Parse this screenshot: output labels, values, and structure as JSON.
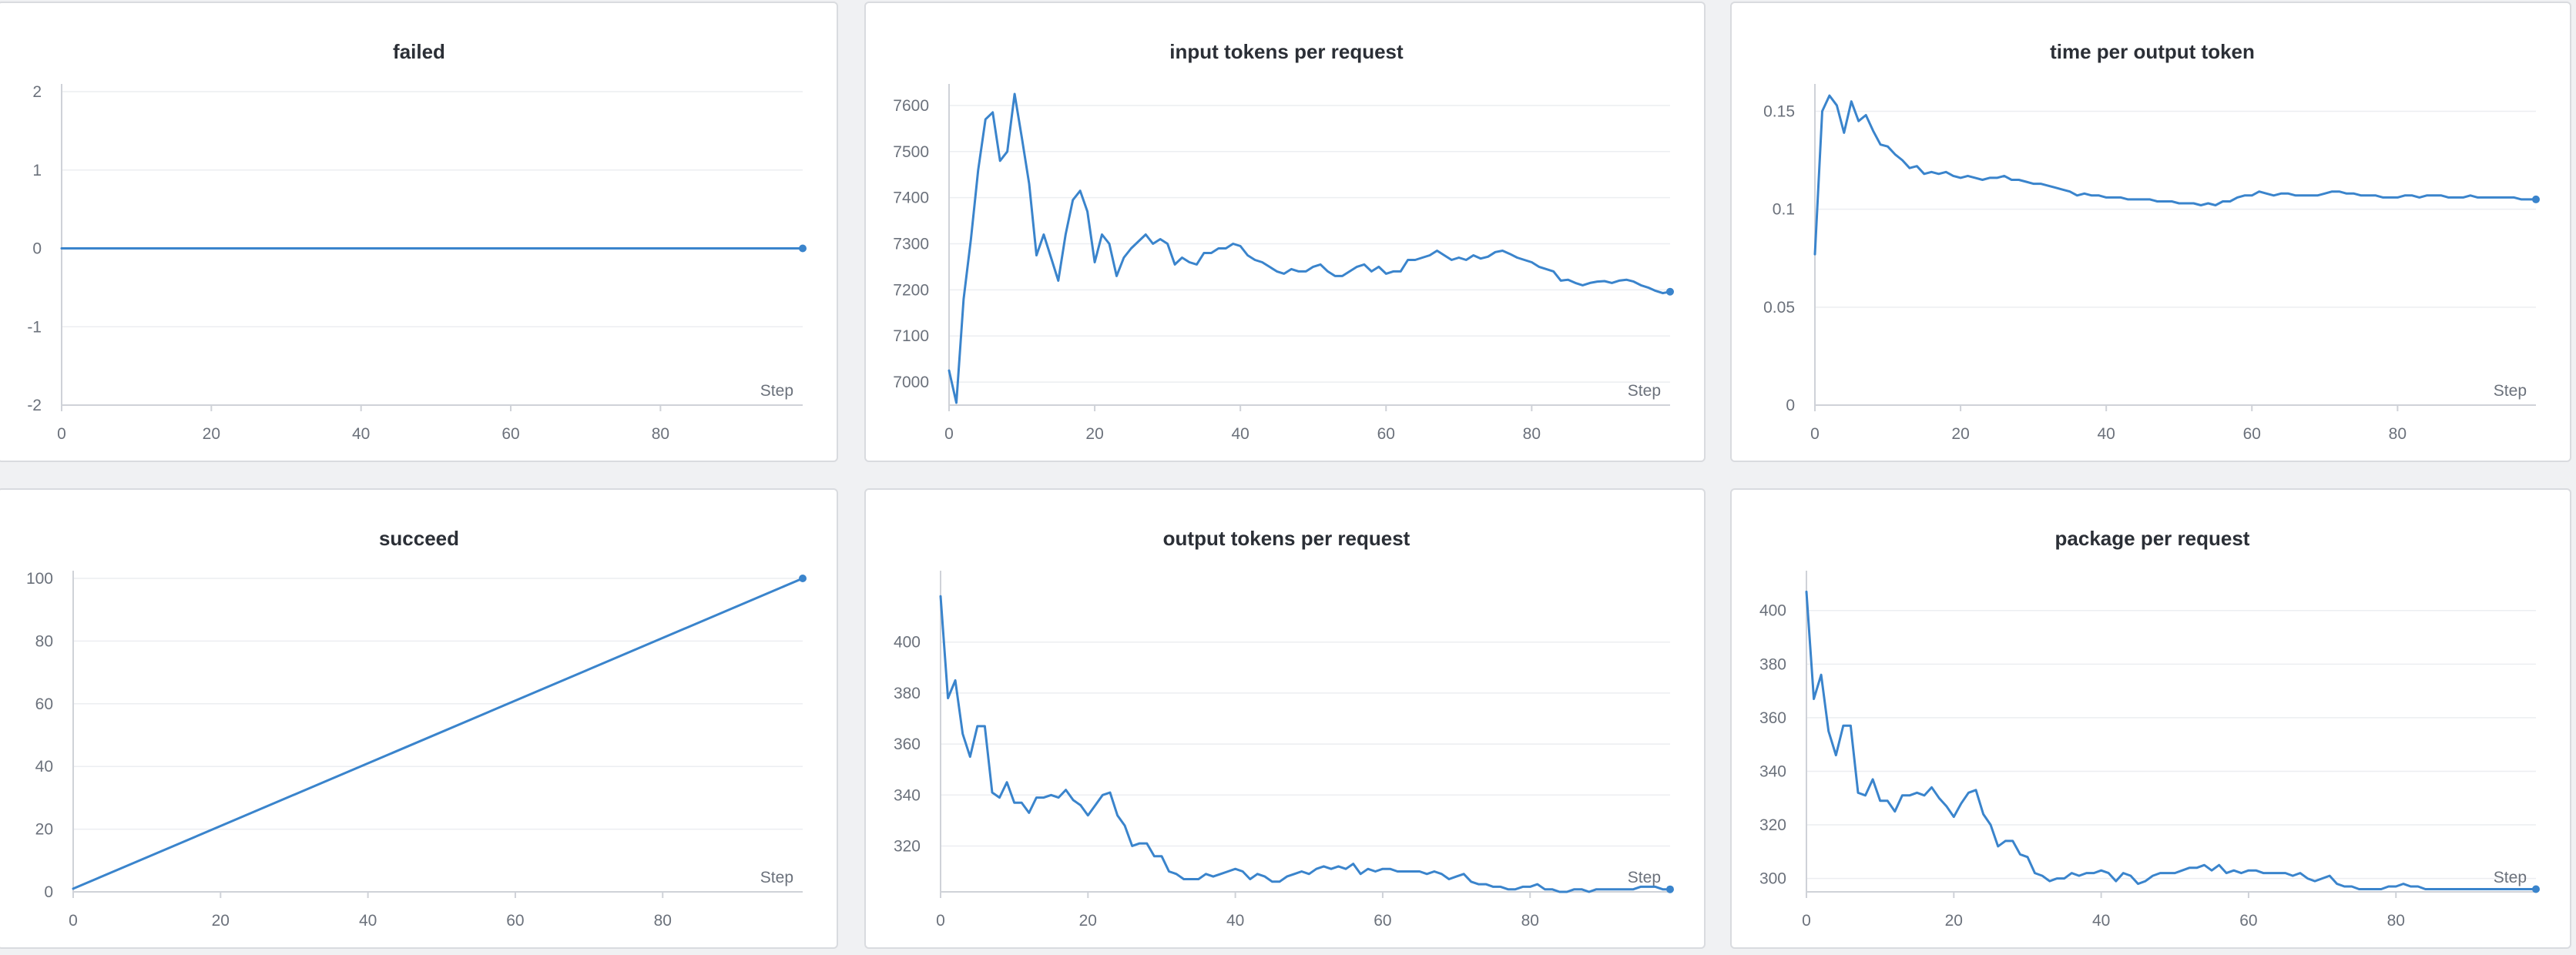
{
  "colors": {
    "series": "#3a84cc"
  },
  "chart_data": [
    {
      "id": "failed",
      "type": "line",
      "title": "failed",
      "xlabel": "Step",
      "xlim": [
        0,
        99
      ],
      "xticks": [
        0,
        20,
        40,
        60,
        80
      ],
      "ylim": [
        -2,
        2
      ],
      "yticks": [
        -2,
        -1,
        0,
        1,
        2
      ],
      "ytick_labels": [
        "-2",
        "-1",
        "0",
        "1",
        "2"
      ],
      "series": [
        {
          "x": [
            0,
            99
          ],
          "y": [
            0,
            0
          ]
        }
      ]
    },
    {
      "id": "input-tokens-per-request",
      "type": "line",
      "title": "input tokens per request",
      "xlabel": "Step",
      "xlim": [
        0,
        99
      ],
      "xticks": [
        0,
        20,
        40,
        60,
        80
      ],
      "ylim": [
        6950,
        7630
      ],
      "yticks": [
        7000,
        7100,
        7200,
        7300,
        7400,
        7500,
        7600
      ],
      "ytick_labels": [
        "7000",
        "7100",
        "7200",
        "7300",
        "7400",
        "7500",
        "7600"
      ],
      "series": [
        {
          "x": [
            0,
            1,
            2,
            3,
            4,
            5,
            6,
            7,
            8,
            9,
            10,
            11,
            12,
            13,
            14,
            15,
            16,
            17,
            18,
            19,
            20,
            21,
            22,
            23,
            24,
            25,
            26,
            27,
            28,
            29,
            30,
            31,
            32,
            33,
            34,
            35,
            36,
            37,
            38,
            39,
            40,
            41,
            42,
            43,
            44,
            45,
            46,
            47,
            48,
            49,
            50,
            51,
            52,
            53,
            54,
            55,
            56,
            57,
            58,
            59,
            60,
            61,
            62,
            63,
            64,
            65,
            66,
            67,
            68,
            69,
            70,
            71,
            72,
            73,
            74,
            75,
            76,
            77,
            78,
            79,
            80,
            81,
            82,
            83,
            84,
            85,
            86,
            87,
            88,
            89,
            90,
            91,
            92,
            93,
            94,
            95,
            96,
            97,
            98,
            99
          ],
          "y": [
            7025,
            6955,
            7180,
            7310,
            7460,
            7570,
            7585,
            7480,
            7500,
            7625,
            7530,
            7430,
            7275,
            7320,
            7270,
            7220,
            7320,
            7395,
            7415,
            7370,
            7260,
            7320,
            7300,
            7230,
            7270,
            7290,
            7305,
            7320,
            7300,
            7310,
            7300,
            7255,
            7270,
            7260,
            7255,
            7280,
            7280,
            7290,
            7290,
            7300,
            7295,
            7275,
            7265,
            7260,
            7250,
            7240,
            7235,
            7245,
            7240,
            7240,
            7250,
            7255,
            7240,
            7230,
            7230,
            7240,
            7250,
            7255,
            7240,
            7250,
            7235,
            7240,
            7240,
            7265,
            7265,
            7270,
            7275,
            7285,
            7275,
            7265,
            7270,
            7265,
            7275,
            7268,
            7272,
            7282,
            7285,
            7278,
            7270,
            7265,
            7260,
            7250,
            7245,
            7240,
            7220,
            7222,
            7215,
            7210,
            7215,
            7218,
            7219,
            7215,
            7220,
            7222,
            7218,
            7210,
            7205,
            7198,
            7193,
            7196
          ]
        }
      ]
    },
    {
      "id": "time-per-output-token",
      "type": "line",
      "title": "time per output token",
      "xlabel": "Step",
      "xlim": [
        0,
        99
      ],
      "xticks": [
        0,
        20,
        40,
        60,
        80
      ],
      "ylim": [
        0,
        0.16
      ],
      "yticks": [
        0,
        0.05,
        0.1,
        0.15
      ],
      "ytick_labels": [
        "0",
        "0.05",
        "0.1",
        "0.15"
      ],
      "series": [
        {
          "x": [
            0,
            1,
            2,
            3,
            4,
            5,
            6,
            7,
            8,
            9,
            10,
            11,
            12,
            13,
            14,
            15,
            16,
            17,
            18,
            19,
            20,
            21,
            22,
            23,
            24,
            25,
            26,
            27,
            28,
            29,
            30,
            31,
            32,
            33,
            34,
            35,
            36,
            37,
            38,
            39,
            40,
            41,
            42,
            43,
            44,
            45,
            46,
            47,
            48,
            49,
            50,
            51,
            52,
            53,
            54,
            55,
            56,
            57,
            58,
            59,
            60,
            61,
            62,
            63,
            64,
            65,
            66,
            67,
            68,
            69,
            70,
            71,
            72,
            73,
            74,
            75,
            76,
            77,
            78,
            79,
            80,
            81,
            82,
            83,
            84,
            85,
            86,
            87,
            88,
            89,
            90,
            91,
            92,
            93,
            94,
            95,
            96,
            97,
            98,
            99
          ],
          "y": [
            0.077,
            0.15,
            0.158,
            0.153,
            0.139,
            0.155,
            0.145,
            0.148,
            0.14,
            0.133,
            0.132,
            0.128,
            0.125,
            0.121,
            0.122,
            0.118,
            0.119,
            0.118,
            0.119,
            0.117,
            0.116,
            0.117,
            0.116,
            0.115,
            0.116,
            0.116,
            0.117,
            0.115,
            0.115,
            0.114,
            0.113,
            0.113,
            0.112,
            0.111,
            0.11,
            0.109,
            0.107,
            0.108,
            0.107,
            0.107,
            0.106,
            0.106,
            0.106,
            0.105,
            0.105,
            0.105,
            0.105,
            0.104,
            0.104,
            0.104,
            0.103,
            0.103,
            0.103,
            0.102,
            0.103,
            0.102,
            0.104,
            0.104,
            0.106,
            0.107,
            0.107,
            0.109,
            0.108,
            0.107,
            0.108,
            0.108,
            0.107,
            0.107,
            0.107,
            0.107,
            0.108,
            0.109,
            0.109,
            0.108,
            0.108,
            0.107,
            0.107,
            0.107,
            0.106,
            0.106,
            0.106,
            0.107,
            0.107,
            0.106,
            0.107,
            0.107,
            0.107,
            0.106,
            0.106,
            0.106,
            0.107,
            0.106,
            0.106,
            0.106,
            0.106,
            0.106,
            0.106,
            0.105,
            0.105,
            0.105
          ]
        }
      ]
    },
    {
      "id": "succeed",
      "type": "line",
      "title": "succeed",
      "xlabel": "Step",
      "xlim": [
        0,
        99
      ],
      "xticks": [
        0,
        20,
        40,
        60,
        80
      ],
      "ylim": [
        0,
        100
      ],
      "yticks": [
        0,
        20,
        40,
        60,
        80,
        100
      ],
      "ytick_labels": [
        "0",
        "20",
        "40",
        "60",
        "80",
        "100"
      ],
      "series": [
        {
          "x": [
            0,
            99
          ],
          "y": [
            1,
            100
          ]
        }
      ]
    },
    {
      "id": "output-tokens-per-request",
      "type": "line",
      "title": "output tokens per request",
      "xlabel": "Step",
      "xlim": [
        0,
        99
      ],
      "xticks": [
        0,
        20,
        40,
        60,
        80
      ],
      "ylim": [
        302,
        425
      ],
      "yticks": [
        320,
        340,
        360,
        380,
        400
      ],
      "ytick_labels": [
        "320",
        "340",
        "360",
        "380",
        "400"
      ],
      "series": [
        {
          "x": [
            0,
            1,
            2,
            3,
            4,
            5,
            6,
            7,
            8,
            9,
            10,
            11,
            12,
            13,
            14,
            15,
            16,
            17,
            18,
            19,
            20,
            21,
            22,
            23,
            24,
            25,
            26,
            27,
            28,
            29,
            30,
            31,
            32,
            33,
            34,
            35,
            36,
            37,
            38,
            39,
            40,
            41,
            42,
            43,
            44,
            45,
            46,
            47,
            48,
            49,
            50,
            51,
            52,
            53,
            54,
            55,
            56,
            57,
            58,
            59,
            60,
            61,
            62,
            63,
            64,
            65,
            66,
            67,
            68,
            69,
            70,
            71,
            72,
            73,
            74,
            75,
            76,
            77,
            78,
            79,
            80,
            81,
            82,
            83,
            84,
            85,
            86,
            87,
            88,
            89,
            90,
            91,
            92,
            93,
            94,
            95,
            96,
            97,
            98,
            99
          ],
          "y": [
            418,
            378,
            385,
            364,
            355,
            367,
            367,
            341,
            339,
            345,
            337,
            337,
            333,
            339,
            339,
            340,
            339,
            342,
            338,
            336,
            332,
            336,
            340,
            341,
            332,
            328,
            320,
            321,
            321,
            316,
            316,
            310,
            309,
            307,
            307,
            307,
            309,
            308,
            309,
            310,
            311,
            310,
            307,
            309,
            308,
            306,
            306,
            308,
            309,
            310,
            309,
            311,
            312,
            311,
            312,
            311,
            313,
            309,
            311,
            310,
            311,
            311,
            310,
            310,
            310,
            310,
            309,
            310,
            309,
            307,
            308,
            309,
            306,
            305,
            305,
            304,
            304,
            303,
            303,
            304,
            304,
            305,
            303,
            303,
            302,
            302,
            303,
            303,
            302,
            303,
            303,
            303,
            303,
            303,
            303,
            304,
            304,
            304,
            303,
            303
          ]
        }
      ]
    },
    {
      "id": "package-per-request",
      "type": "line",
      "title": "package per request",
      "xlabel": "Step",
      "xlim": [
        0,
        99
      ],
      "xticks": [
        0,
        20,
        40,
        60,
        80
      ],
      "ylim": [
        295,
        412
      ],
      "yticks": [
        300,
        320,
        340,
        360,
        380,
        400
      ],
      "ytick_labels": [
        "300",
        "320",
        "340",
        "360",
        "380",
        "400"
      ],
      "series": [
        {
          "x": [
            0,
            1,
            2,
            3,
            4,
            5,
            6,
            7,
            8,
            9,
            10,
            11,
            12,
            13,
            14,
            15,
            16,
            17,
            18,
            19,
            20,
            21,
            22,
            23,
            24,
            25,
            26,
            27,
            28,
            29,
            30,
            31,
            32,
            33,
            34,
            35,
            36,
            37,
            38,
            39,
            40,
            41,
            42,
            43,
            44,
            45,
            46,
            47,
            48,
            49,
            50,
            51,
            52,
            53,
            54,
            55,
            56,
            57,
            58,
            59,
            60,
            61,
            62,
            63,
            64,
            65,
            66,
            67,
            68,
            69,
            70,
            71,
            72,
            73,
            74,
            75,
            76,
            77,
            78,
            79,
            80,
            81,
            82,
            83,
            84,
            85,
            86,
            87,
            88,
            89,
            90,
            91,
            92,
            93,
            94,
            95,
            96,
            97,
            98,
            99
          ],
          "y": [
            407,
            367,
            376,
            355,
            346,
            357,
            357,
            332,
            331,
            337,
            329,
            329,
            325,
            331,
            331,
            332,
            331,
            334,
            330,
            327,
            323,
            328,
            332,
            333,
            324,
            320,
            312,
            314,
            314,
            309,
            308,
            302,
            301,
            299,
            300,
            300,
            302,
            301,
            302,
            302,
            303,
            302,
            299,
            302,
            301,
            298,
            299,
            301,
            302,
            302,
            302,
            303,
            304,
            304,
            305,
            303,
            305,
            302,
            303,
            302,
            303,
            303,
            302,
            302,
            302,
            302,
            301,
            302,
            300,
            299,
            300,
            301,
            298,
            297,
            297,
            296,
            296,
            296,
            296,
            297,
            297,
            298,
            297,
            297,
            296,
            296,
            296,
            296,
            296,
            296,
            296,
            296,
            296,
            296,
            296,
            296,
            296,
            296,
            296,
            296
          ]
        }
      ]
    }
  ]
}
